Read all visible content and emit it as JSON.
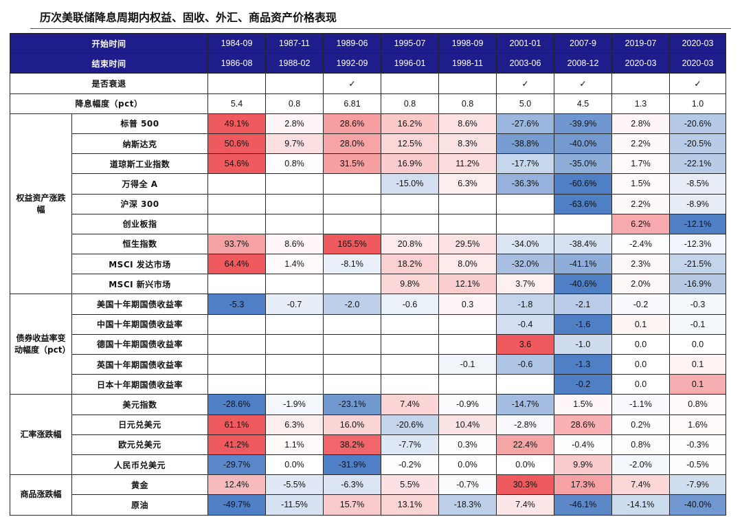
{
  "title": "历次美联储降息周期内权益、固收、外汇、商品资产价格表现",
  "header": {
    "start_label": "开始时间",
    "end_label": "结束时间",
    "recession_label": "是否衰退",
    "cut_label": "降息幅度（pct）",
    "start": [
      "1984-09",
      "1987-11",
      "1989-06",
      "1995-07",
      "1998-09",
      "2001-01",
      "2007-9",
      "2019-07",
      "2020-03"
    ],
    "end": [
      "1986-08",
      "1988-02",
      "1992-09",
      "1996-01",
      "1998-11",
      "2003-06",
      "2008-12",
      "2020-03",
      "2020-03"
    ],
    "recession": [
      "",
      "",
      "✓",
      "",
      "",
      "✓",
      "✓",
      "",
      "✓"
    ],
    "cut": [
      "5.4",
      "0.8",
      "6.81",
      "0.8",
      "0.8",
      "5.0",
      "4.5",
      "1.3",
      "1.0"
    ]
  },
  "groups": [
    {
      "label": "权益资产涨跌幅",
      "rows": [
        {
          "name": "标普 500",
          "values": [
            "49.1%",
            "2.8%",
            "28.6%",
            "16.2%",
            "8.6%",
            "-27.6%",
            "-39.9%",
            "2.8%",
            "-20.6%"
          ]
        },
        {
          "name": "纳斯达克",
          "values": [
            "50.6%",
            "9.7%",
            "28.0%",
            "12.5%",
            "8.3%",
            "-38.8%",
            "-40.0%",
            "2.2%",
            "-20.5%"
          ]
        },
        {
          "name": "道琼斯工业指数",
          "values": [
            "54.6%",
            "0.8%",
            "31.5%",
            "16.9%",
            "11.2%",
            "-17.7%",
            "-35.0%",
            "1.7%",
            "-22.1%"
          ]
        },
        {
          "name": "万得全 A",
          "values": [
            "",
            "",
            "",
            "-15.0%",
            "6.3%",
            "-36.3%",
            "-60.6%",
            "1.5%",
            "-8.5%"
          ]
        },
        {
          "name": "沪深 300",
          "values": [
            "",
            "",
            "",
            "",
            "",
            "",
            "-63.6%",
            "2.2%",
            "-8.9%"
          ]
        },
        {
          "name": "创业板指",
          "values": [
            "",
            "",
            "",
            "",
            "",
            "",
            "",
            "6.2%",
            "-12.1%"
          ]
        },
        {
          "name": "恒生指数",
          "values": [
            "93.7%",
            "8.6%",
            "165.5%",
            "20.8%",
            "29.5%",
            "-34.0%",
            "-38.4%",
            "-2.4%",
            "-12.3%"
          ]
        },
        {
          "name": "MSCI 发达市场",
          "values": [
            "64.4%",
            "1.4%",
            "-8.1%",
            "18.2%",
            "8.0%",
            "-32.0%",
            "-41.1%",
            "2.3%",
            "-21.5%"
          ]
        },
        {
          "name": "MSCI 新兴市场",
          "values": [
            "",
            "",
            "",
            "9.8%",
            "12.1%",
            "3.7%",
            "-40.6%",
            "2.0%",
            "-16.9%"
          ]
        }
      ]
    },
    {
      "label": "债券收益率变动幅度（pct）",
      "rows": [
        {
          "name": "美国十年期国债收益率",
          "values": [
            "-5.3",
            "-0.7",
            "-2.0",
            "-0.6",
            "0.3",
            "-1.8",
            "-2.1",
            "-0.2",
            "-0.3"
          ]
        },
        {
          "name": "中国十年期国债收益率",
          "values": [
            "",
            "",
            "",
            "",
            "",
            "-0.4",
            "-1.6",
            "0.1",
            "-0.1"
          ]
        },
        {
          "name": "德国十年期国债收益率",
          "values": [
            "",
            "",
            "",
            "",
            "",
            "3.6",
            "-1.0",
            "0.0",
            "0.0"
          ]
        },
        {
          "name": "英国十年期国债收益率",
          "values": [
            "",
            "",
            "",
            "",
            "-0.1",
            "-0.6",
            "-1.3",
            "0.0",
            "0.1"
          ]
        },
        {
          "name": "日本十年期国债收益率",
          "values": [
            "",
            "",
            "",
            "",
            "",
            "",
            "-0.2",
            "0.0",
            "0.1"
          ]
        }
      ]
    },
    {
      "label": "汇率涨跌幅",
      "rows": [
        {
          "name": "美元指数",
          "values": [
            "-28.6%",
            "-1.9%",
            "-23.1%",
            "7.4%",
            "-0.9%",
            "-14.7%",
            "1.5%",
            "-1.1%",
            "0.8%"
          ]
        },
        {
          "name": "日元兑美元",
          "values": [
            "61.1%",
            "6.3%",
            "16.0%",
            "-20.6%",
            "10.4%",
            "-2.8%",
            "28.6%",
            "0.2%",
            "1.6%"
          ]
        },
        {
          "name": "欧元兑美元",
          "values": [
            "41.2%",
            "1.1%",
            "38.2%",
            "-7.7%",
            "0.3%",
            "22.4%",
            "-0.4%",
            "0.8%",
            "-0.3%"
          ]
        },
        {
          "name": "人民币兑美元",
          "values": [
            "-29.7%",
            "0.0%",
            "-31.9%",
            "-0.2%",
            "0.0%",
            "0.0%",
            "9.9%",
            "-2.0%",
            "-0.5%"
          ]
        }
      ]
    },
    {
      "label": "商品涨跌幅",
      "rows": [
        {
          "name": "黄金",
          "values": [
            "12.4%",
            "-5.5%",
            "-6.3%",
            "5.5%",
            "-0.7%",
            "30.3%",
            "17.3%",
            "7.4%",
            "-7.9%"
          ]
        },
        {
          "name": "原油",
          "values": [
            "-49.7%",
            "-11.5%",
            "15.7%",
            "13.1%",
            "-18.3%",
            "7.4%",
            "-46.1%",
            "-14.1%",
            "-40.0%"
          ]
        }
      ]
    }
  ],
  "colors": {
    "header_bg": "#1f1d8c",
    "positive_strong": "#ef5a5e",
    "negative_strong": "#4f7fc4",
    "neutral": "#ffffff"
  }
}
